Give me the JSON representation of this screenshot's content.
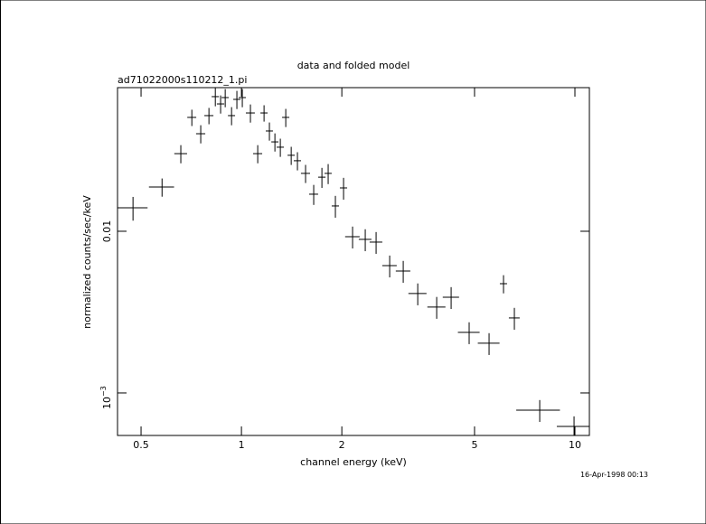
{
  "chart_data": {
    "type": "scatter",
    "title": "data and folded model",
    "subtitle": "ad71022000s110212_1.pi",
    "x_label": "channel energy (keV)",
    "y_label": "normalized counts/sec/keV",
    "timestamp": "16-Apr-1998 00:13",
    "x_scale": "log",
    "y_scale": "log",
    "color": "#000000",
    "xlim": [
      0.425,
      11.05
    ],
    "ylim": [
      0.000546,
      0.0773
    ],
    "xticks": [
      0.5,
      1,
      2,
      5,
      10
    ],
    "yticks": [
      0.01,
      {
        "value": 0.001,
        "label": "10",
        "exponent": "−3"
      }
    ],
    "x": [
      0.473,
      0.578,
      0.658,
      0.71,
      0.755,
      0.799,
      0.835,
      0.866,
      0.894,
      0.934,
      0.969,
      1.006,
      1.064,
      1.119,
      1.169,
      1.213,
      1.26,
      1.308,
      1.358,
      1.41,
      1.472,
      1.557,
      1.647,
      1.743,
      1.82,
      1.913,
      2.024,
      2.154,
      2.351,
      2.534,
      2.783,
      3.056,
      3.378,
      3.85,
      4.254,
      4.818,
      5.528,
      6.107,
      6.583,
      7.842,
      9.94
    ],
    "xerr": [
      0.05,
      0.05,
      0.029,
      0.022,
      0.024,
      0.025,
      0.021,
      0.022,
      0.022,
      0.023,
      0.024,
      0.025,
      0.033,
      0.035,
      0.029,
      0.03,
      0.031,
      0.033,
      0.034,
      0.035,
      0.037,
      0.049,
      0.051,
      0.044,
      0.045,
      0.048,
      0.051,
      0.108,
      0.103,
      0.111,
      0.139,
      0.153,
      0.211,
      0.24,
      0.239,
      0.361,
      0.414,
      0.152,
      0.246,
      1.174,
      1.116
    ],
    "y": [
      0.01397,
      0.01878,
      0.0302,
      0.0506,
      0.0401,
      0.0519,
      0.068,
      0.0613,
      0.0671,
      0.0519,
      0.0654,
      0.0671,
      0.0539,
      0.0302,
      0.0539,
      0.0417,
      0.0357,
      0.0331,
      0.0506,
      0.0295,
      0.0273,
      0.0228,
      0.01695,
      0.0216,
      0.0228,
      0.01434,
      0.01854,
      0.00926,
      0.00891,
      0.00857,
      0.00613,
      0.00568,
      0.00412,
      0.0034,
      0.00391,
      0.00237,
      0.00203,
      0.00474,
      0.00291,
      0.000783,
      0.000621
    ],
    "yerr": [
      0.00234,
      0.00242,
      0.00388,
      0.00586,
      0.00516,
      0.00601,
      0.00874,
      0.00788,
      0.00863,
      0.00667,
      0.00841,
      0.00863,
      0.00693,
      0.00388,
      0.00624,
      0.00536,
      0.00459,
      0.00426,
      0.00651,
      0.00379,
      0.00351,
      0.00293,
      0.0024,
      0.00306,
      0.00323,
      0.00221,
      0.00286,
      0.00143,
      0.00138,
      0.00132,
      0.000946,
      0.000877,
      0.000636,
      0.000525,
      0.000603,
      0.000366,
      0.000313,
      0.00061,
      0.000449,
      0.000121,
      9.58e-05
    ]
  }
}
